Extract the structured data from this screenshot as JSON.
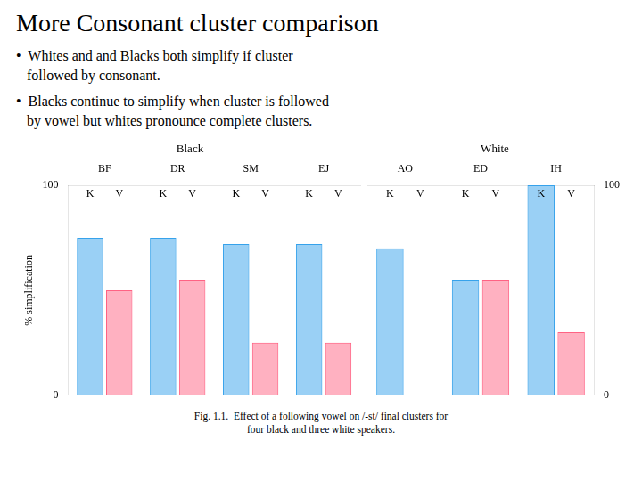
{
  "chart_data": [
    {
      "type": "bar",
      "title": "Black",
      "annotations": [
        "More Consonant cluster comparison",
        "•  Whites and and Blacks both simplify if cluster\n   followed by consonant.",
        "•  Blacks continue to simplify when cluster is followed\n   by vowel but whites pronounce complete clusters.",
        "Fig. 1.1.  Effect of a following vowel on /-st/ final clusters for\nfour black and three white speakers."
      ],
      "ylabel": "% simplification",
      "categories": [
        "BF",
        "DR",
        "SM",
        "EJ"
      ],
      "series": [
        {
          "name": "K",
          "values": [
            75,
            75,
            72,
            72
          ]
        },
        {
          "name": "V",
          "values": [
            50,
            55,
            25,
            25
          ]
        }
      ],
      "ylim": [
        0,
        100
      ],
      "yticks": [
        0,
        100
      ],
      "grid": false
    },
    {
      "type": "bar",
      "title": "White",
      "categories": [
        "AO",
        "ED",
        "IH"
      ],
      "series": [
        {
          "name": "K",
          "values": [
            70,
            55,
            100
          ]
        },
        {
          "name": "V",
          "values": [
            0,
            55,
            30
          ]
        }
      ],
      "ylim": [
        0,
        100
      ],
      "yticks": [
        0,
        100
      ],
      "grid": false
    }
  ]
}
